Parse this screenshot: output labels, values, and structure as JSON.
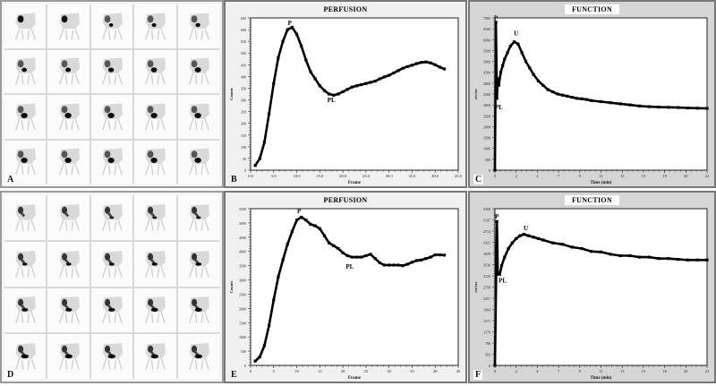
{
  "figure": {
    "panels": {
      "A": {
        "letter": "A",
        "type": "scintigraphy-frames",
        "rows": 4,
        "cols": 5
      },
      "B": {
        "letter": "B",
        "title": "PERFUSION"
      },
      "C": {
        "letter": "C",
        "title": "FUNCTION"
      },
      "D": {
        "letter": "D",
        "type": "scintigraphy-frames",
        "rows": 4,
        "cols": 5
      },
      "E": {
        "letter": "E",
        "title": "PERFUSION"
      },
      "F": {
        "letter": "F",
        "title": "FUNCTION"
      }
    }
  },
  "chart_data": [
    {
      "panel": "B",
      "type": "line",
      "title": "PERFUSION",
      "xlabel": "Frame",
      "ylabel": "Counts",
      "xlim": [
        0,
        45
      ],
      "ylim": [
        0,
        650
      ],
      "xticks": [
        "0.0",
        "5.0",
        "10.0",
        "15.0",
        "20.0",
        "25.0",
        "30.0",
        "35.0",
        "40.0",
        "45.0"
      ],
      "yticks": [
        0,
        50,
        100,
        150,
        200,
        250,
        300,
        350,
        400,
        450,
        500,
        550,
        600,
        650
      ],
      "annotations": [
        {
          "text": "P",
          "x": 8.5,
          "y": 620
        },
        {
          "text": "PL",
          "x": 17.5,
          "y": 290
        }
      ],
      "x": [
        1,
        2,
        3,
        4,
        5,
        6,
        7,
        8,
        9,
        10,
        11,
        12,
        13,
        14,
        15,
        16,
        17,
        18,
        19,
        20,
        21,
        22,
        23,
        24,
        25,
        26,
        27,
        28,
        29,
        30,
        31,
        32,
        33,
        34,
        35,
        36,
        37,
        38,
        39,
        40,
        41,
        42
      ],
      "values": [
        20,
        50,
        120,
        240,
        370,
        480,
        550,
        600,
        610,
        580,
        530,
        470,
        420,
        390,
        360,
        340,
        325,
        320,
        325,
        335,
        345,
        355,
        360,
        365,
        370,
        375,
        380,
        390,
        398,
        405,
        415,
        425,
        435,
        442,
        448,
        455,
        460,
        462,
        458,
        450,
        440,
        432
      ]
    },
    {
      "panel": "C",
      "type": "line",
      "title": "FUNCTION",
      "xlabel": "Time (min)",
      "ylabel": "cts/sec",
      "xlim": [
        0,
        22
      ],
      "ylim": [
        0,
        7000
      ],
      "xticks": [
        "0",
        "2",
        "4",
        "7",
        "9",
        "11",
        "13",
        "15",
        "18",
        "20",
        "22"
      ],
      "annotations": [
        {
          "text": "P",
          "x": 0.1,
          "y": 6900
        },
        {
          "text": "U",
          "x": 2.2,
          "y": 6200
        },
        {
          "text": "PL",
          "x": 0.4,
          "y": 2800
        }
      ],
      "x": [
        0,
        0.1,
        0.2,
        0.3,
        0.4,
        0.6,
        0.8,
        1.0,
        1.3,
        1.6,
        2.0,
        2.4,
        2.8,
        3.2,
        3.6,
        4.0,
        4.5,
        5.0,
        5.5,
        6.0,
        6.5,
        7.0,
        7.5,
        8.0,
        8.5,
        9.0,
        9.5,
        10,
        11,
        12,
        13,
        14,
        15,
        16,
        17,
        18,
        19,
        20,
        21,
        22
      ],
      "values": [
        0,
        6800,
        3300,
        4200,
        3900,
        4500,
        4800,
        5100,
        5400,
        5700,
        5900,
        5800,
        5400,
        5000,
        4700,
        4400,
        4100,
        3900,
        3700,
        3600,
        3500,
        3450,
        3400,
        3350,
        3300,
        3280,
        3250,
        3200,
        3150,
        3100,
        3050,
        3000,
        2950,
        2920,
        2900,
        2890,
        2880,
        2860,
        2850,
        2840
      ]
    },
    {
      "panel": "E",
      "type": "line",
      "title": "PERFUSION",
      "xlabel": "Frame",
      "ylabel": "Counts",
      "xlim": [
        0,
        45
      ],
      "ylim": [
        0,
        5500
      ],
      "xticks": [
        "0",
        "5",
        "10",
        "15",
        "20",
        "25",
        "30",
        "35",
        "40",
        "45"
      ],
      "yticks": [
        0,
        500,
        1000,
        1500,
        2000,
        2500,
        3000,
        3500,
        4000,
        4500,
        5000,
        5500
      ],
      "annotations": [
        {
          "text": "P",
          "x": 10.5,
          "y": 5350
        },
        {
          "text": "PL",
          "x": 21.5,
          "y": 3400
        }
      ],
      "x": [
        1,
        2,
        3,
        4,
        5,
        6,
        7,
        8,
        9,
        10,
        11,
        12,
        13,
        14,
        15,
        16,
        17,
        18,
        19,
        20,
        21,
        22,
        23,
        24,
        25,
        26,
        27,
        28,
        29,
        30,
        31,
        32,
        33,
        34,
        35,
        36,
        37,
        38,
        39,
        40,
        41,
        42
      ],
      "values": [
        150,
        300,
        700,
        1400,
        2300,
        3100,
        3700,
        4250,
        4700,
        5100,
        5200,
        5100,
        4950,
        4900,
        4800,
        4550,
        4300,
        4200,
        4100,
        3950,
        3850,
        3800,
        3800,
        3800,
        3850,
        3900,
        3750,
        3600,
        3520,
        3520,
        3520,
        3520,
        3500,
        3550,
        3620,
        3680,
        3700,
        3750,
        3800,
        3880,
        3880,
        3870
      ]
    },
    {
      "panel": "F",
      "type": "line",
      "title": "FUNCTION",
      "xlabel": "Time (min)",
      "ylabel": "cts/sec",
      "xlim": [
        0,
        22
      ],
      "ylim": [
        0,
        5500
      ],
      "xticks": [
        "0",
        "2",
        "4",
        "7",
        "9",
        "11",
        "13",
        "15",
        "18",
        "20",
        "22"
      ],
      "annotations": [
        {
          "text": "P",
          "x": 0.2,
          "y": 5150
        },
        {
          "text": "U",
          "x": 3.2,
          "y": 4750
        },
        {
          "text": "PL",
          "x": 0.8,
          "y": 2900
        }
      ],
      "x": [
        0,
        0.2,
        0.3,
        0.5,
        0.7,
        1.0,
        1.4,
        1.8,
        2.2,
        2.6,
        3.0,
        3.5,
        4.0,
        4.5,
        5,
        6,
        7,
        8,
        9,
        10,
        11,
        12,
        13,
        14,
        15,
        16,
        17,
        18,
        19,
        20,
        21,
        22
      ],
      "values": [
        0,
        5050,
        3200,
        3200,
        3500,
        3800,
        4100,
        4300,
        4450,
        4550,
        4600,
        4550,
        4500,
        4450,
        4400,
        4300,
        4250,
        4150,
        4100,
        4000,
        3980,
        3900,
        3850,
        3850,
        3800,
        3800,
        3750,
        3750,
        3720,
        3700,
        3700,
        3700
      ]
    }
  ]
}
